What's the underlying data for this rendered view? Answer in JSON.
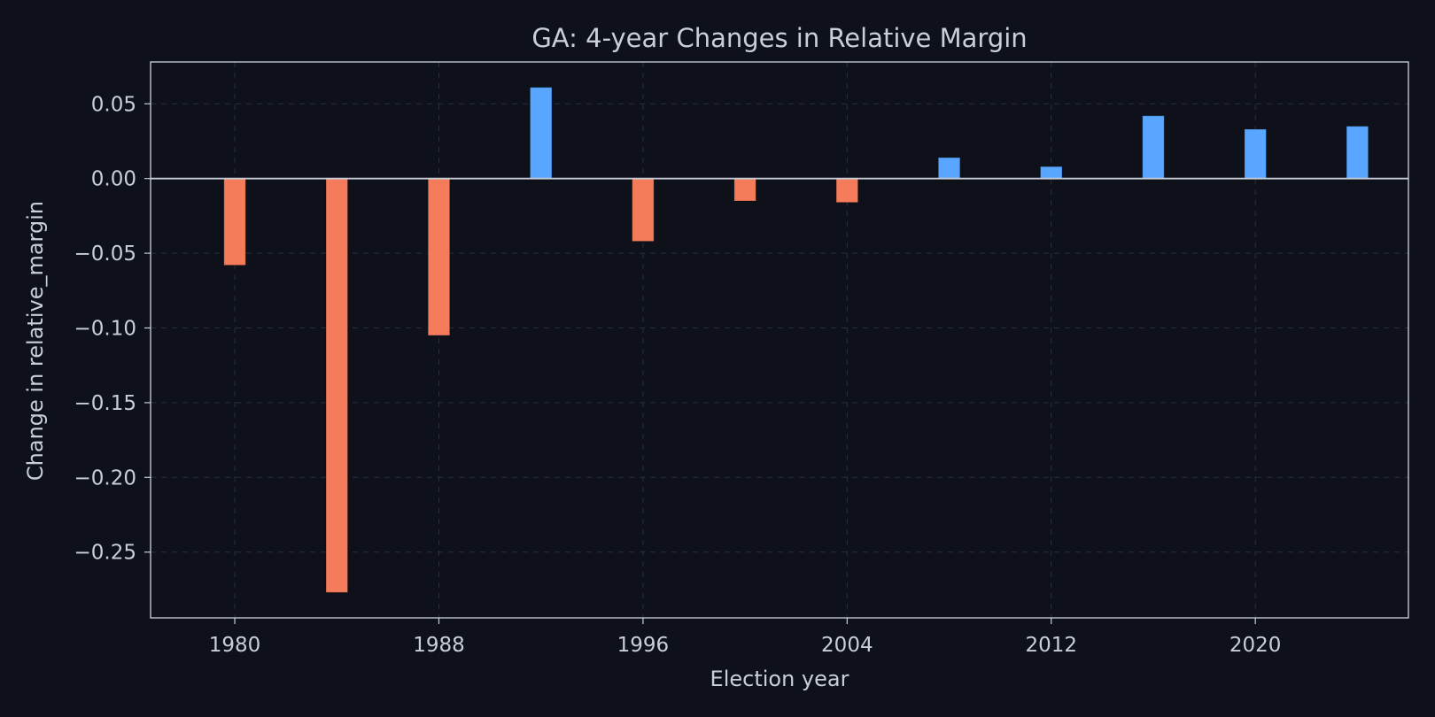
{
  "chart_data": {
    "type": "bar",
    "title": "GA: 4-year Changes in Relative Margin",
    "xlabel": "Election year",
    "ylabel": "Change in relative_margin",
    "x": [
      1980,
      1984,
      1988,
      1992,
      1996,
      2000,
      2004,
      2008,
      2012,
      2016,
      2020,
      2024
    ],
    "values": [
      -0.058,
      -0.277,
      -0.105,
      0.061,
      -0.042,
      -0.015,
      -0.016,
      0.014,
      0.008,
      0.042,
      0.033,
      0.035
    ],
    "x_ticks": [
      1980,
      1988,
      1996,
      2004,
      2012,
      2020
    ],
    "x_tick_labels": [
      "1980",
      "1988",
      "1996",
      "2004",
      "2012",
      "2020"
    ],
    "y_ticks": [
      0.05,
      0.0,
      -0.05,
      -0.1,
      -0.15,
      -0.2,
      -0.25
    ],
    "y_tick_labels": [
      "0.05",
      "0.00",
      "−0.05",
      "−0.10",
      "−0.15",
      "−0.20",
      "−0.25"
    ],
    "xlim": [
      1976.7,
      2026.0
    ],
    "ylim": [
      -0.294,
      0.078
    ],
    "grid": true,
    "colors": {
      "positive": "#58a6ff",
      "negative": "#f47c5a",
      "background": "#0e111a",
      "text": "#c9ced8",
      "zero_line": "#c9ced8"
    }
  }
}
